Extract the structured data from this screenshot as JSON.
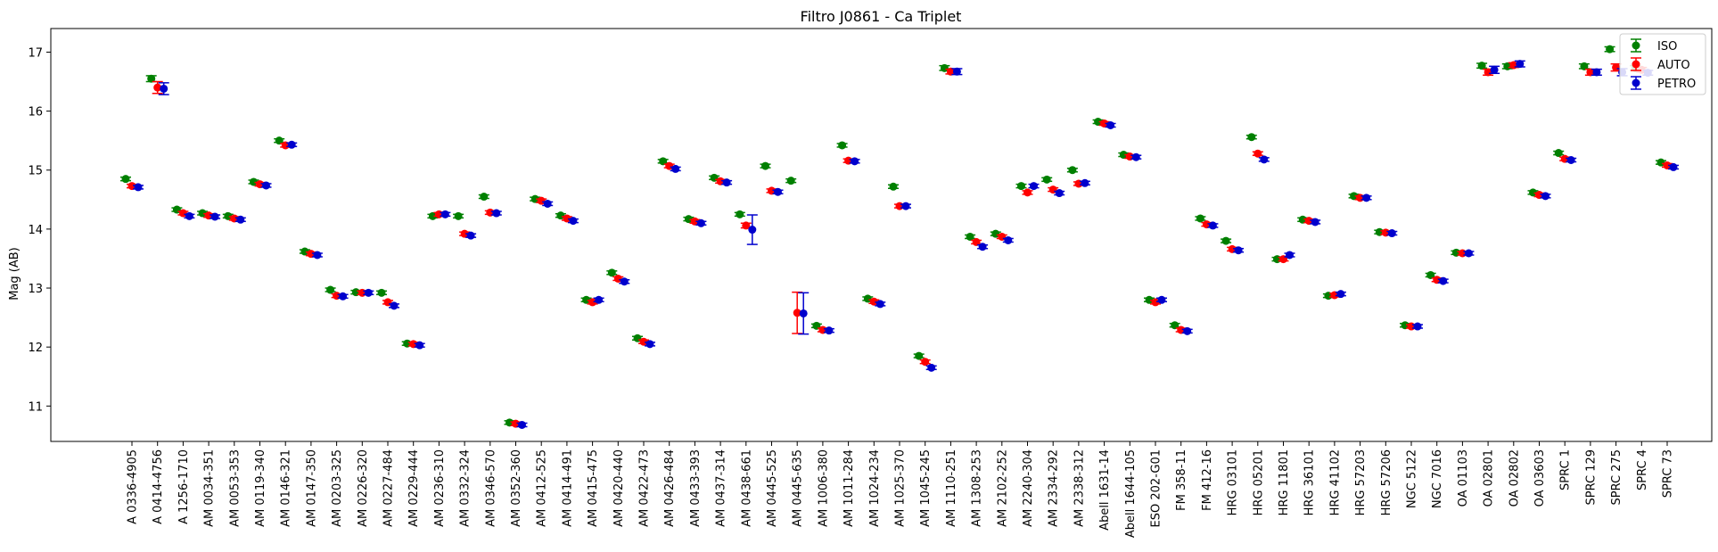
{
  "chart_data": {
    "type": "scatter",
    "title": "Filtro J0861 - Ca Triplet",
    "ylabel": "Mag (AB)",
    "xlabel": "",
    "ylim": [
      10.4,
      17.4
    ],
    "yticks": [
      11,
      12,
      13,
      14,
      15,
      16,
      17
    ],
    "legend_position": "top-right",
    "grid": false,
    "categories": [
      "A 0336-4905",
      "A 0414-4756",
      "A 1256-1710",
      "AM 0034-351",
      "AM 0053-353",
      "AM 0119-340",
      "AM 0146-321",
      "AM 0147-350",
      "AM 0203-325",
      "AM 0226-320",
      "AM 0227-484",
      "AM 0229-444",
      "AM 0236-310",
      "AM 0332-324",
      "AM 0346-570",
      "AM 0352-360",
      "AM 0412-525",
      "AM 0414-491",
      "AM 0415-475",
      "AM 0420-440",
      "AM 0422-473",
      "AM 0426-484",
      "AM 0433-393",
      "AM 0437-314",
      "AM 0438-661",
      "AM 0445-525",
      "AM 0445-635",
      "AM 1006-380",
      "AM 1011-284",
      "AM 1024-234",
      "AM 1025-370",
      "AM 1045-245",
      "AM 1110-251",
      "AM 1308-253",
      "AM 2102-252",
      "AM 2240-304",
      "AM 2334-292",
      "AM 2338-312",
      "Abell 1631-14",
      "Abell 1644-105",
      "ESO 202-G01",
      "FM 358-11",
      "FM 412-16",
      "HRG 03101",
      "HRG 05201",
      "HRG 11801",
      "HRG 36101",
      "HRG 41102",
      "HRG 57203",
      "HRG 57206",
      "NGC 5122",
      "NGC 7016",
      "OA 01103",
      "OA 02801",
      "OA 02802",
      "OA 03603",
      "SPRC 1",
      "SPRC 129",
      "SPRC 275",
      "SPRC 4",
      "SPRC 73"
    ],
    "series": [
      {
        "name": "ISO",
        "color": "#008000",
        "values": [
          14.85,
          16.55,
          14.33,
          14.27,
          14.22,
          14.8,
          15.5,
          13.62,
          12.97,
          12.93,
          12.92,
          12.06,
          14.22,
          14.22,
          14.55,
          10.72,
          14.51,
          14.23,
          12.8,
          13.26,
          12.15,
          15.15,
          14.17,
          14.87,
          14.25,
          15.07,
          14.82,
          12.36,
          15.42,
          12.82,
          14.72,
          11.85,
          16.73,
          13.87,
          13.92,
          14.73,
          14.84,
          15.0,
          15.82,
          15.26,
          12.8,
          12.37,
          14.18,
          13.8,
          15.56,
          13.49,
          14.16,
          12.87,
          14.56,
          13.95,
          12.37,
          13.22,
          13.6,
          16.77,
          16.76,
          14.62,
          15.29,
          16.76,
          17.05,
          16.73,
          15.13
        ],
        "errors": [
          0.03,
          0.05,
          0.03,
          0.03,
          0.03,
          0.03,
          0.03,
          0.03,
          0.03,
          0.03,
          0.03,
          0.03,
          0.03,
          0.03,
          0.03,
          0.03,
          0.03,
          0.03,
          0.03,
          0.03,
          0.03,
          0.03,
          0.03,
          0.03,
          0.03,
          0.03,
          0.03,
          0.03,
          0.03,
          0.03,
          0.03,
          0.03,
          0.04,
          0.03,
          0.03,
          0.03,
          0.03,
          0.03,
          0.03,
          0.03,
          0.03,
          0.03,
          0.03,
          0.03,
          0.03,
          0.03,
          0.03,
          0.03,
          0.03,
          0.03,
          0.03,
          0.03,
          0.03,
          0.04,
          0.04,
          0.03,
          0.03,
          0.04,
          0.04,
          0.04,
          0.03
        ]
      },
      {
        "name": "AUTO",
        "color": "#ff0000",
        "values": [
          14.73,
          16.4,
          14.27,
          14.23,
          14.18,
          14.76,
          15.42,
          13.58,
          12.87,
          12.92,
          12.76,
          12.05,
          14.25,
          13.92,
          14.28,
          10.7,
          14.48,
          14.18,
          12.76,
          13.16,
          12.09,
          15.07,
          14.13,
          14.81,
          14.06,
          14.65,
          12.58,
          12.29,
          15.16,
          12.77,
          14.39,
          11.75,
          16.67,
          13.78,
          13.87,
          14.62,
          14.67,
          14.77,
          15.79,
          15.23,
          12.76,
          12.29,
          14.08,
          13.66,
          15.28,
          13.49,
          14.14,
          12.88,
          14.53,
          13.94,
          12.35,
          13.14,
          13.59,
          16.66,
          16.78,
          14.58,
          15.19,
          16.66,
          16.74,
          16.7,
          15.08
        ],
        "errors": [
          0.03,
          0.1,
          0.03,
          0.03,
          0.03,
          0.03,
          0.03,
          0.03,
          0.03,
          0.03,
          0.03,
          0.03,
          0.03,
          0.03,
          0.03,
          0.03,
          0.03,
          0.03,
          0.03,
          0.03,
          0.03,
          0.03,
          0.03,
          0.03,
          0.04,
          0.03,
          0.35,
          0.03,
          0.03,
          0.03,
          0.03,
          0.03,
          0.04,
          0.03,
          0.03,
          0.03,
          0.03,
          0.03,
          0.03,
          0.03,
          0.03,
          0.03,
          0.03,
          0.03,
          0.03,
          0.03,
          0.03,
          0.03,
          0.03,
          0.03,
          0.03,
          0.03,
          0.03,
          0.05,
          0.04,
          0.03,
          0.03,
          0.05,
          0.06,
          0.04,
          0.03
        ]
      },
      {
        "name": "PETRO",
        "color": "#0000cd",
        "values": [
          14.71,
          16.38,
          14.22,
          14.21,
          14.16,
          14.74,
          15.43,
          13.56,
          12.86,
          12.92,
          12.7,
          12.03,
          14.25,
          13.89,
          14.27,
          10.68,
          14.43,
          14.14,
          12.8,
          13.11,
          12.05,
          15.02,
          14.1,
          14.79,
          13.99,
          14.63,
          12.57,
          12.28,
          15.15,
          12.73,
          14.39,
          11.65,
          16.67,
          13.7,
          13.81,
          14.73,
          14.61,
          14.78,
          15.76,
          15.22,
          12.8,
          12.27,
          14.06,
          13.64,
          15.18,
          13.56,
          14.12,
          12.9,
          14.53,
          13.93,
          12.35,
          13.12,
          13.59,
          16.7,
          16.8,
          14.56,
          15.17,
          16.66,
          16.66,
          16.65,
          15.05
        ],
        "errors": [
          0.03,
          0.1,
          0.03,
          0.03,
          0.03,
          0.03,
          0.03,
          0.03,
          0.03,
          0.03,
          0.03,
          0.03,
          0.03,
          0.03,
          0.03,
          0.03,
          0.03,
          0.03,
          0.03,
          0.03,
          0.03,
          0.03,
          0.03,
          0.03,
          0.25,
          0.03,
          0.35,
          0.03,
          0.03,
          0.03,
          0.03,
          0.03,
          0.05,
          0.03,
          0.03,
          0.03,
          0.03,
          0.03,
          0.03,
          0.03,
          0.03,
          0.03,
          0.03,
          0.03,
          0.03,
          0.03,
          0.03,
          0.03,
          0.03,
          0.03,
          0.03,
          0.03,
          0.03,
          0.06,
          0.05,
          0.03,
          0.03,
          0.05,
          0.06,
          0.04,
          0.03
        ]
      }
    ]
  }
}
